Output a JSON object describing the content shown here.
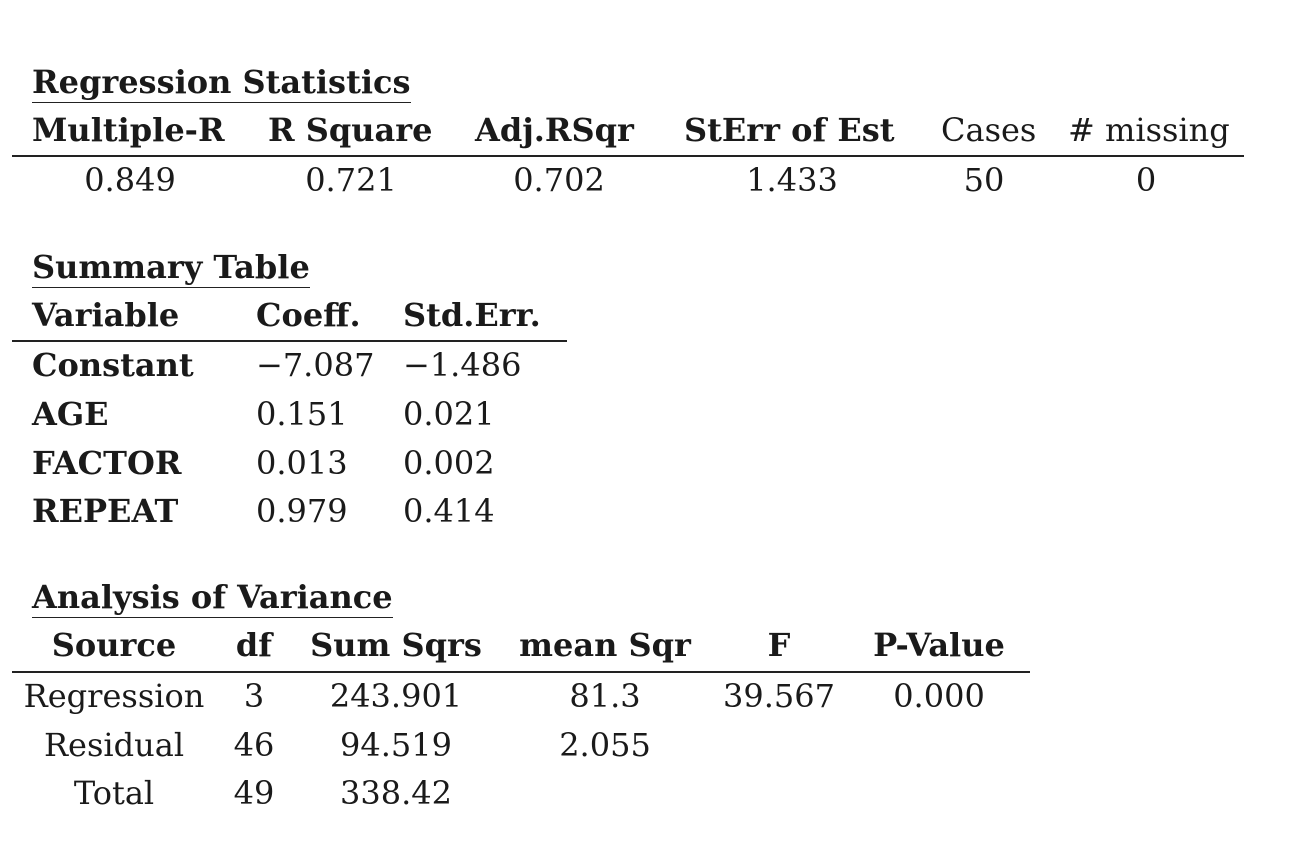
{
  "regression_statistics": {
    "title": "Regression Statistics",
    "headers": [
      "Multiple-R",
      "R Square",
      "Adj.RSqr",
      "StErr of Est",
      "Cases",
      "# missing"
    ],
    "values": [
      "0.849",
      "0.721",
      "0.702",
      "1.433",
      "50",
      "0"
    ]
  },
  "summary_table": {
    "title": "Summary Table",
    "headers": [
      "Variable",
      "Coeff.",
      "Std.Err."
    ],
    "rows": [
      [
        "Constant",
        "−7.087",
        "−1.486"
      ],
      [
        "AGE",
        "0.151",
        "0.021"
      ],
      [
        "FACTOR",
        "0.013",
        "0.002"
      ],
      [
        "REPEAT",
        "0.979",
        "0.414"
      ]
    ]
  },
  "anova": {
    "title": "Analysis of Variance",
    "headers": [
      "Source",
      "df",
      "Sum Sqrs",
      "mean Sqr",
      "F",
      "P-Value"
    ],
    "rows": [
      [
        "Regression",
        "3",
        "243.901",
        "81.3",
        "39.567",
        "0.000"
      ],
      [
        "Residual",
        "46",
        "94.519",
        "2.055",
        "",
        ""
      ],
      [
        "Total",
        "49",
        "338.42",
        "",
        "",
        ""
      ]
    ]
  }
}
